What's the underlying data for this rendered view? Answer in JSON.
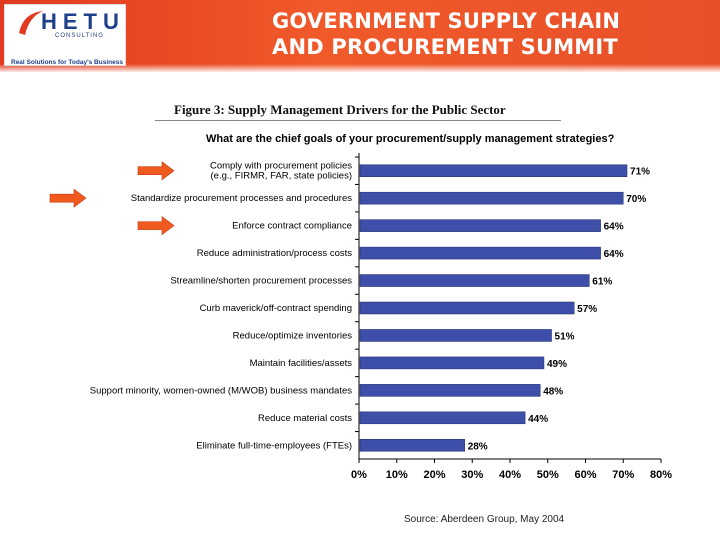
{
  "header": {
    "logo_name": "HETU",
    "logo_sub": "CONSULTING",
    "logo_tagline": "Real Solutions for Today's Business",
    "title_line1": "GOVERNMENT SUPPLY CHAIN",
    "title_line2": "AND PROCUREMENT SUMMIT",
    "banner_color": "#e8482a"
  },
  "figure_title": "Figure 3: Supply Management Drivers for the Public Sector",
  "source": "Source: Aberdeen Group, May 2004",
  "arrows": {
    "color": "#f05a1e",
    "highlighted_categories": [
      0,
      1,
      2
    ]
  },
  "chart_data": {
    "type": "bar",
    "orientation": "horizontal",
    "title": "What are the chief goals of your procurement/supply management strategies?",
    "categories": [
      [
        "Comply with procurement policies",
        "(e.g., FIRMR, FAR, state policies)"
      ],
      [
        "Standardize procurement processes and procedures"
      ],
      [
        "Enforce contract compliance"
      ],
      [
        "Reduce administration/process costs"
      ],
      [
        "Streamline/shorten procurement processes"
      ],
      [
        "Curb maverick/off-contract spending"
      ],
      [
        "Reduce/optimize inventories"
      ],
      [
        "Maintain facilities/assets"
      ],
      [
        "Support minority, women-owned (M/WOB) business mandates"
      ],
      [
        "Reduce material costs"
      ],
      [
        "Eliminate full-time-employees (FTEs)"
      ]
    ],
    "values": [
      71,
      70,
      64,
      64,
      61,
      57,
      51,
      49,
      48,
      44,
      28
    ],
    "value_labels": [
      "71%",
      "70%",
      "64%",
      "64%",
      "61%",
      "57%",
      "51%",
      "49%",
      "48%",
      "44%",
      "28%"
    ],
    "xlim": [
      0,
      80
    ],
    "ticks": [
      0,
      10,
      20,
      30,
      40,
      50,
      60,
      70,
      80
    ],
    "tick_labels": [
      "0%",
      "10%",
      "20%",
      "30%",
      "40%",
      "50%",
      "60%",
      "70%",
      "80%"
    ],
    "bar_color": "#3d4fa8",
    "grid": false
  }
}
